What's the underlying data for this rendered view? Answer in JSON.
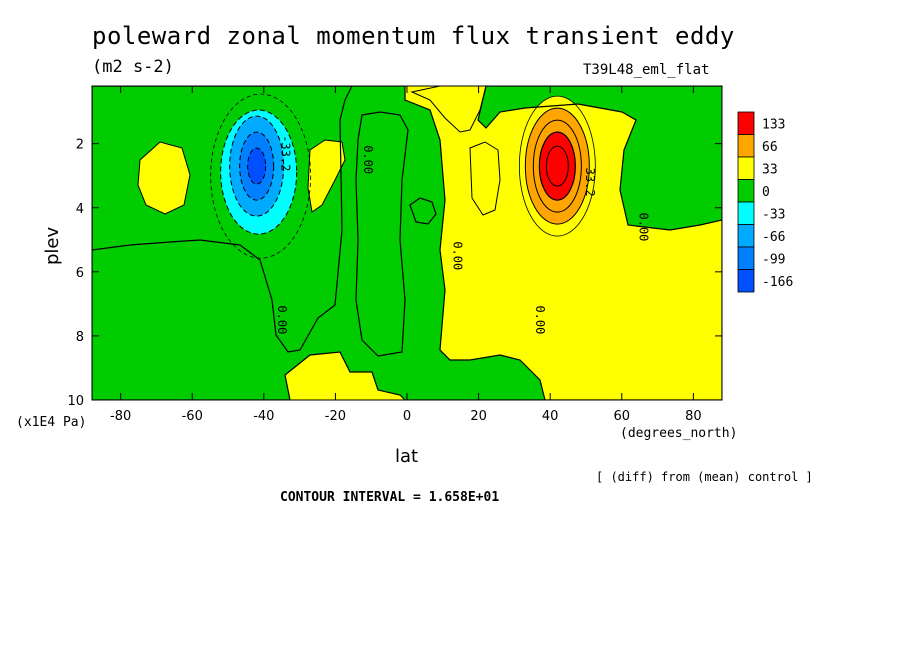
{
  "header": {
    "title": "poleward zonal momentum flux transient eddy",
    "units": "(m2 s-2)",
    "run_id": "T39L48_eml_flat"
  },
  "footer": {
    "diff_note": "[ (diff) from (mean) control ]",
    "contour_interval": "CONTOUR INTERVAL = 1.658E+01"
  },
  "chart_data": {
    "type": "heatmap",
    "title": "poleward zonal momentum flux transient eddy",
    "subtitle": "(m2 s-2)",
    "xlabel": "lat",
    "xunits": "(degrees_north)",
    "ylabel": "plev",
    "yunits": "(x1E4 Pa)",
    "xlim": [
      -88,
      88
    ],
    "ylim": [
      10,
      0.2
    ],
    "y_inverted": true,
    "xticks": [
      -80,
      -60,
      -40,
      -20,
      0,
      20,
      40,
      60,
      80
    ],
    "yticks": [
      2,
      4,
      6,
      8,
      10
    ],
    "contour_interval": 16.58,
    "colorbar": {
      "levels": [
        "133",
        "66",
        "33",
        "0",
        "-33",
        "-66",
        "-99",
        "-166"
      ],
      "colors": [
        "#ff0000",
        "#ffa500",
        "#ffff00",
        "#00cc00",
        "#00ffff",
        "#00aaff",
        "#0080ff",
        "#0050ff"
      ]
    },
    "features": [
      {
        "type": "minimum",
        "lat": -42,
        "plev": 2.7,
        "value": -166,
        "sign": "negative"
      },
      {
        "type": "maximum",
        "lat": 42,
        "plev": 2.7,
        "value": 133,
        "sign": "positive"
      }
    ],
    "contour_labels": [
      {
        "text": "-33.2",
        "lat": -35,
        "plev": 2.3
      },
      {
        "text": "33.2",
        "lat": 50,
        "plev": 3.2
      },
      {
        "text": "0.00",
        "lat": -12,
        "plev": 2.5
      },
      {
        "text": "0.00",
        "lat": -36,
        "plev": 7.5
      },
      {
        "text": "0.00",
        "lat": 13,
        "plev": 5.5
      },
      {
        "text": "0.00",
        "lat": 36,
        "plev": 7.5
      },
      {
        "text": "0.00",
        "lat": 65,
        "plev": 4.6
      }
    ]
  }
}
